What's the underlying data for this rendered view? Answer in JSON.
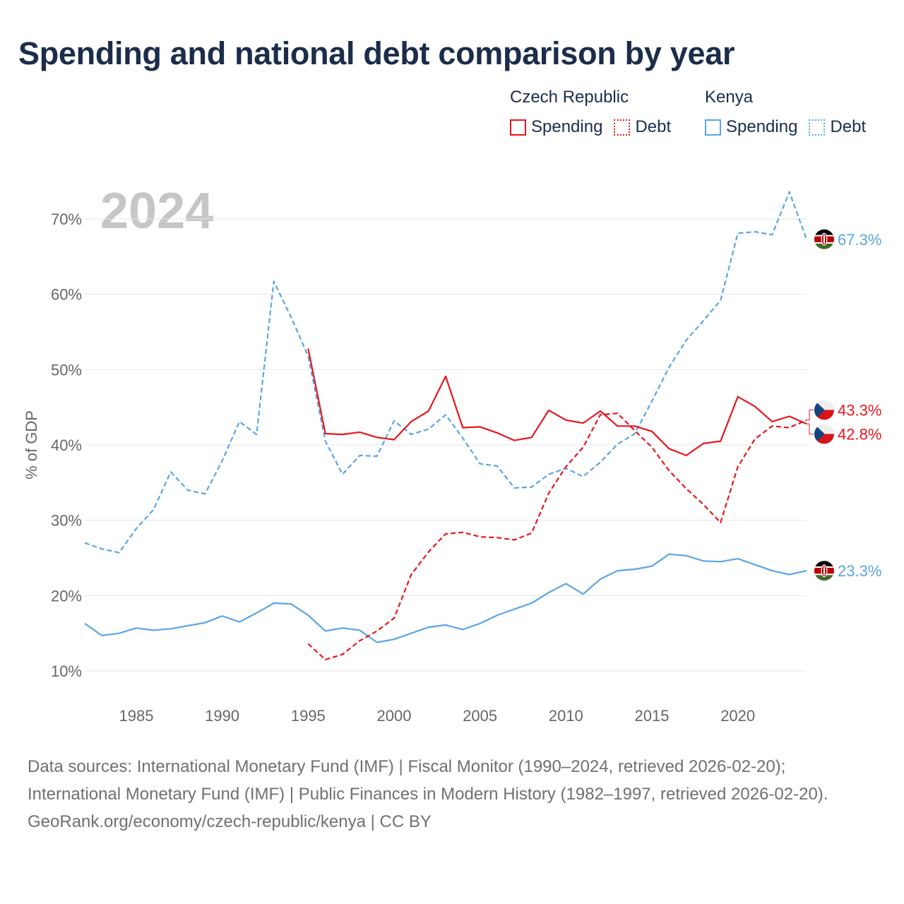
{
  "title": "Spending and national debt comparison by year",
  "legend": {
    "groups": [
      {
        "country": "Czech Republic",
        "color": "#e8161c",
        "items": [
          {
            "label": "Spending",
            "style": "solid"
          },
          {
            "label": "Debt",
            "style": "dotted"
          }
        ]
      },
      {
        "country": "Kenya",
        "color": "#5aa5e6",
        "items": [
          {
            "label": "Spending",
            "style": "solid"
          },
          {
            "label": "Debt",
            "style": "dotted"
          }
        ]
      }
    ]
  },
  "chart_data": {
    "type": "line",
    "title": "Spending and national debt comparison by year",
    "year_label": "2024",
    "xlabel": "",
    "ylabel": "% of GDP",
    "xlim": [
      1982,
      2024
    ],
    "ylim": [
      10,
      70
    ],
    "x_ticks": [
      1985,
      1990,
      1995,
      2000,
      2005,
      2010,
      2015,
      2020
    ],
    "y_ticks": [
      {
        "value": 10,
        "label": "10%"
      },
      {
        "value": 20,
        "label": "20%"
      },
      {
        "value": 30,
        "label": "30%"
      },
      {
        "value": 40,
        "label": "40%"
      },
      {
        "value": 50,
        "label": "50%"
      },
      {
        "value": 60,
        "label": "60%"
      },
      {
        "value": 70,
        "label": "70%"
      }
    ],
    "series": [
      {
        "name": "Kenya Debt",
        "country": "Kenya",
        "flag": "kenya",
        "color": "#5aa5e6",
        "dashed": true,
        "x": [
          1982,
          1983,
          1984,
          1985,
          1986,
          1987,
          1988,
          1989,
          1990,
          1991,
          1992,
          1993,
          1994,
          1995,
          1996,
          1997,
          1998,
          1999,
          2000,
          2001,
          2002,
          2003,
          2004,
          2005,
          2006,
          2007,
          2008,
          2009,
          2010,
          2011,
          2012,
          2013,
          2014,
          2015,
          2016,
          2017,
          2018,
          2019,
          2020,
          2021,
          2022,
          2023,
          2024
        ],
        "values": [
          27.0,
          26.2,
          25.7,
          28.9,
          31.4,
          36.4,
          34.0,
          33.5,
          37.9,
          43.1,
          41.4,
          61.7,
          57.0,
          51.8,
          40.5,
          36.1,
          38.6,
          38.5,
          43.2,
          41.4,
          42.1,
          44.0,
          40.9,
          37.5,
          37.2,
          34.3,
          34.4,
          36.1,
          36.9,
          35.8,
          37.7,
          40.1,
          41.5,
          45.8,
          50.3,
          53.9,
          56.5,
          59.2,
          68.1,
          68.3,
          67.9,
          73.6,
          67.3
        ],
        "end_label": "67.3%"
      },
      {
        "name": "Kenya Spending",
        "country": "Kenya",
        "flag": "kenya",
        "color": "#5aa5e6",
        "dashed": false,
        "x": [
          1982,
          1983,
          1984,
          1985,
          1986,
          1987,
          1988,
          1989,
          1990,
          1991,
          1992,
          1993,
          1994,
          1995,
          1996,
          1997,
          1998,
          1999,
          2000,
          2001,
          2002,
          2003,
          2004,
          2005,
          2006,
          2007,
          2008,
          2009,
          2010,
          2011,
          2012,
          2013,
          2014,
          2015,
          2016,
          2017,
          2018,
          2019,
          2020,
          2021,
          2022,
          2023,
          2024
        ],
        "values": [
          16.3,
          14.7,
          15.0,
          15.7,
          15.4,
          15.6,
          16.0,
          16.4,
          17.3,
          16.5,
          17.7,
          19.0,
          18.9,
          17.4,
          15.3,
          15.7,
          15.4,
          13.8,
          14.2,
          15.0,
          15.8,
          16.1,
          15.5,
          16.3,
          17.4,
          18.2,
          19.0,
          20.4,
          21.6,
          20.2,
          22.2,
          23.3,
          23.5,
          23.9,
          25.5,
          25.3,
          24.6,
          24.5,
          24.9,
          24.1,
          23.3,
          22.8,
          23.3
        ],
        "end_label": "23.3%"
      },
      {
        "name": "Czech Republic Spending",
        "country": "Czech Republic",
        "flag": "czech",
        "color": "#e8161c",
        "dashed": false,
        "x": [
          1995,
          1996,
          1997,
          1998,
          1999,
          2000,
          2001,
          2002,
          2003,
          2004,
          2005,
          2006,
          2007,
          2008,
          2009,
          2010,
          2011,
          2012,
          2013,
          2014,
          2015,
          2016,
          2017,
          2018,
          2019,
          2020,
          2021,
          2022,
          2023,
          2024
        ],
        "values": [
          52.8,
          41.5,
          41.4,
          41.7,
          41.0,
          40.7,
          43.1,
          44.5,
          49.1,
          42.3,
          42.4,
          41.6,
          40.6,
          41.0,
          44.6,
          43.3,
          42.9,
          44.5,
          42.5,
          42.5,
          41.8,
          39.5,
          38.6,
          40.2,
          40.5,
          46.4,
          45.1,
          43.1,
          43.8,
          42.8
        ],
        "end_label": "42.8%"
      },
      {
        "name": "Czech Republic Debt",
        "country": "Czech Republic",
        "flag": "czech",
        "color": "#e8161c",
        "dashed": true,
        "x": [
          1995,
          1996,
          1997,
          1998,
          1999,
          2000,
          2001,
          2002,
          2003,
          2004,
          2005,
          2006,
          2007,
          2008,
          2009,
          2010,
          2011,
          2012,
          2013,
          2014,
          2015,
          2016,
          2017,
          2018,
          2019,
          2020,
          2021,
          2022,
          2023,
          2024
        ],
        "values": [
          13.6,
          11.5,
          12.2,
          14.0,
          15.3,
          17.0,
          22.8,
          25.8,
          28.2,
          28.4,
          27.8,
          27.7,
          27.4,
          28.3,
          33.6,
          37.1,
          39.7,
          44.0,
          44.2,
          41.9,
          39.7,
          36.6,
          34.2,
          32.1,
          29.7,
          37.1,
          40.8,
          42.5,
          42.3,
          43.3
        ],
        "end_label": "43.3%"
      }
    ]
  },
  "footer": {
    "sources": "Data sources: International Monetary Fund (IMF) | Fiscal Monitor (1990–2024, retrieved 2026-02-20); International Monetary Fund (IMF) | Public Finances in Modern History (1982–1997, retrieved 2026-02-20).",
    "credit": "GeoRank.org/economy/czech-republic/kenya | CC BY"
  }
}
